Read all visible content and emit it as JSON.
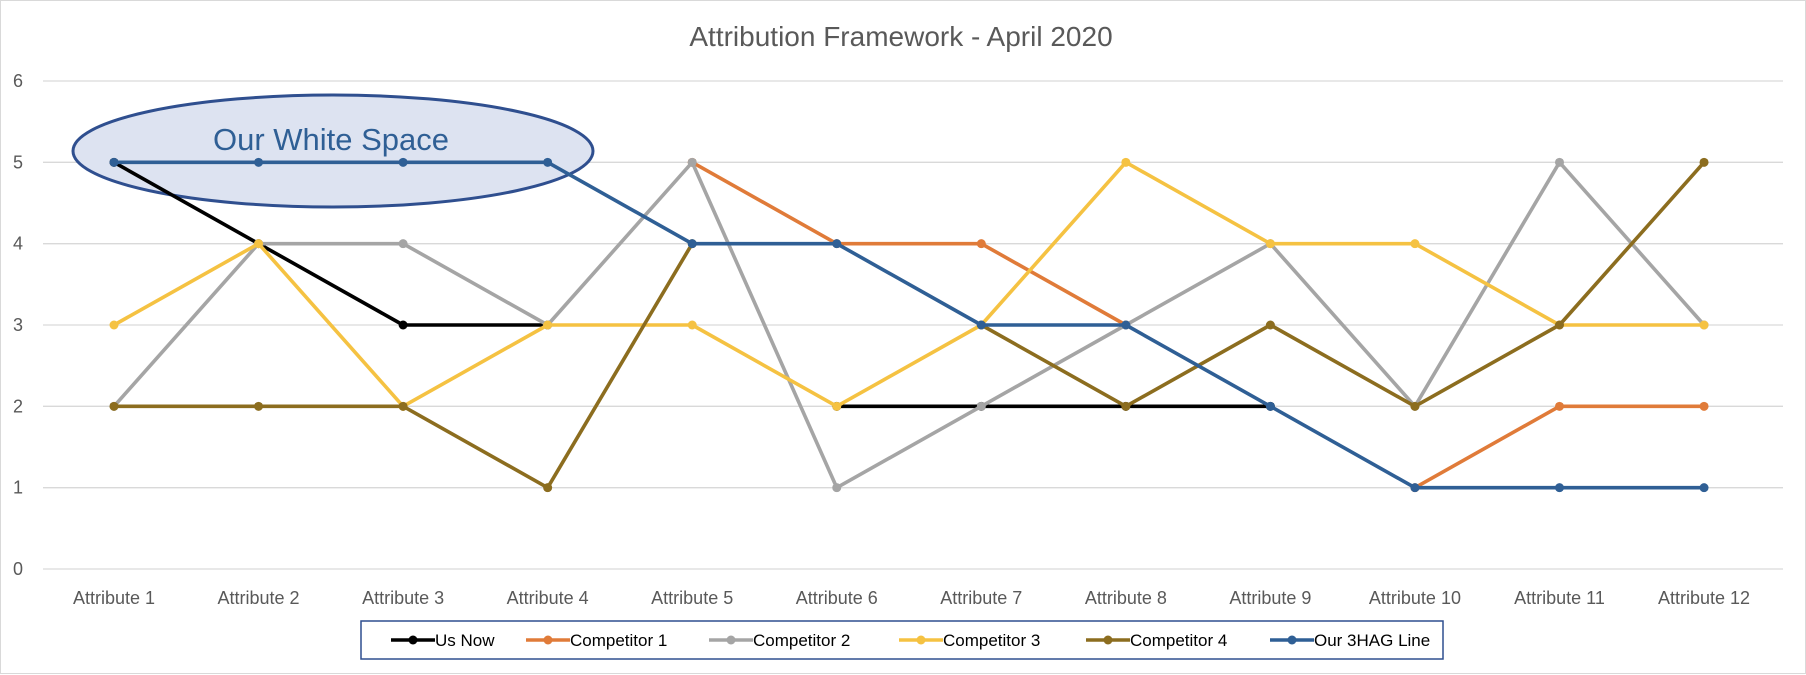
{
  "chart_data": {
    "type": "line",
    "title": "Attribution Framework - April 2020",
    "categories": [
      "Attribute 1",
      "Attribute 2",
      "Attribute 3",
      "Attribute 4",
      "Attribute 5",
      "Attribute 6",
      "Attribute 7",
      "Attribute 8",
      "Attribute 9",
      "Attribute 10",
      "Attribute 11",
      "Attribute 12"
    ],
    "ylim": [
      0,
      6
    ],
    "yticks": [
      "0",
      "1",
      "2",
      "3",
      "4",
      "5",
      "6"
    ],
    "grid": true,
    "legend_position": "bottom",
    "series": [
      {
        "name": "Us Now",
        "color": "#000000",
        "values": [
          5,
          4,
          3,
          3,
          null,
          2,
          2,
          2,
          2,
          null,
          null,
          null
        ]
      },
      {
        "name": "Competitor 1",
        "color": "#E07B39",
        "values": [
          null,
          null,
          null,
          null,
          5,
          4,
          4,
          3,
          null,
          1,
          2,
          2
        ]
      },
      {
        "name": "Competitor 2",
        "color": "#A5A5A5",
        "values": [
          2,
          4,
          4,
          3,
          5,
          1,
          2,
          3,
          4,
          2,
          5,
          3
        ]
      },
      {
        "name": "Competitor 3",
        "color": "#F5C242",
        "values": [
          3,
          4,
          2,
          3,
          3,
          2,
          3,
          5,
          4,
          4,
          3,
          3
        ]
      },
      {
        "name": "Competitor 4",
        "color": "#8C6D1F",
        "values": [
          2,
          2,
          2,
          1,
          4,
          null,
          3,
          2,
          3,
          2,
          3,
          5
        ]
      },
      {
        "name": "Our 3HAG Line",
        "color": "#2F5F95",
        "values": [
          5,
          5,
          5,
          5,
          4,
          4,
          3,
          3,
          2,
          1,
          1,
          1
        ]
      }
    ],
    "annotations": [
      {
        "text": "Our White Space",
        "shape": "ellipse",
        "fill": "#DDE3F1",
        "stroke": "#2F4F8F"
      }
    ]
  }
}
